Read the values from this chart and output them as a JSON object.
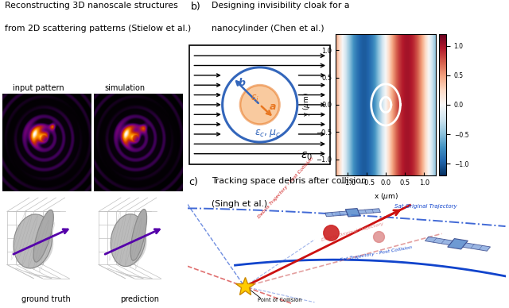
{
  "panel_a_title_l1": "Reconstructing 3D nanoscale structures",
  "panel_a_title_l2": "from 2D scattering patterns (Stielow et al.)",
  "panel_b_title_l1": "Designing invisibility cloak for a",
  "panel_b_title_l2": "nanocylinder (Chen et al.)",
  "panel_c_title_l1": "Tracking space debris after collision",
  "panel_c_title_l2": "(Singh et al.)",
  "label_b": "b)",
  "label_c": "c)",
  "sub_label_input": "input pattern",
  "sub_label_sim": "simulation",
  "sub_label_gt": "ground truth",
  "sub_label_pred": "prediction",
  "bg_color": "#ffffff",
  "cloak_inner_color": "#e87722",
  "cloak_outer_color": "#3366bb",
  "arrow_color": "#000000",
  "field_colormap": "RdBu_r",
  "sat_body_color": "#5588cc",
  "sat_panel_color": "#88aade",
  "traj_blue": "#1144cc",
  "traj_red": "#cc1111",
  "traj_pink": "#dd8888",
  "collision_star": "#ffcc00",
  "label_color_blue": "#3366aa",
  "label_color_red": "#cc2222"
}
